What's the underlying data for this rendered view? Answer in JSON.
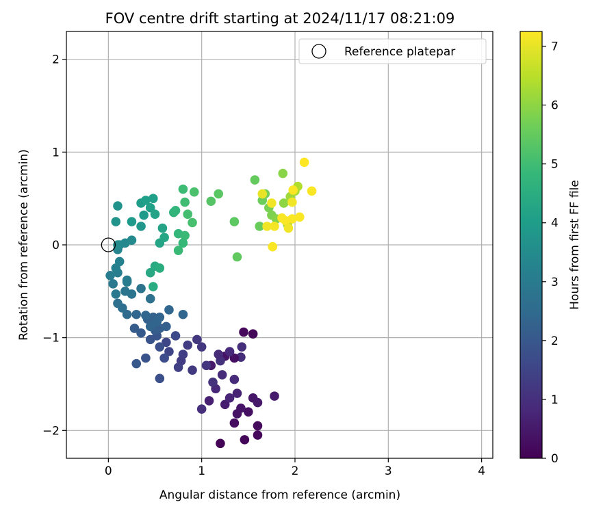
{
  "chart_data": {
    "type": "scatter",
    "title": "FOV centre drift starting at 2024/11/17 08:21:09",
    "xlabel": "Angular distance from reference (arcmin)",
    "ylabel": "Rotation from reference (arcmin)",
    "xlim": [
      -0.45,
      4.12
    ],
    "ylim": [
      -2.3,
      2.3
    ],
    "xticks": [
      0,
      1,
      2,
      3,
      4
    ],
    "yticks": [
      -2,
      -1,
      0,
      1,
      2
    ],
    "grid": true,
    "legend": {
      "placement": "top-right",
      "entries": [
        "Reference platepar"
      ]
    },
    "reference_point": {
      "x": 0,
      "y": 0
    },
    "colorbar": {
      "label": "Hours from first FF file",
      "range": [
        0,
        7.25
      ],
      "ticks": [
        0,
        1,
        2,
        3,
        4,
        5,
        6,
        7
      ],
      "colormap": [
        "#440154",
        "#482878",
        "#3e4989",
        "#31688e",
        "#26828e",
        "#1f9e89",
        "#35b779",
        "#6ece58",
        "#b5de2b",
        "#fde725"
      ]
    },
    "series": [
      {
        "points": [
          [
            1.2,
            -2.14,
            0.05
          ],
          [
            1.46,
            -2.1,
            0.1
          ],
          [
            1.6,
            -2.05,
            0.15
          ],
          [
            1.6,
            -1.95,
            0.2
          ],
          [
            1.35,
            -1.92,
            0.25
          ],
          [
            1.5,
            -1.8,
            0.3
          ],
          [
            1.38,
            -1.82,
            0.35
          ],
          [
            1.42,
            -1.76,
            0.4
          ],
          [
            1.55,
            -1.65,
            0.45
          ],
          [
            1.6,
            -1.7,
            0.5
          ],
          [
            1.78,
            -1.63,
            0.55
          ],
          [
            1.25,
            -1.72,
            0.6
          ],
          [
            1.08,
            -1.68,
            0.65
          ],
          [
            1.38,
            -1.6,
            0.7
          ],
          [
            1.3,
            -1.65,
            0.75
          ],
          [
            1.15,
            -1.55,
            0.8
          ],
          [
            1.35,
            -1.45,
            0.85
          ],
          [
            1.22,
            -1.4,
            0.9
          ],
          [
            1.42,
            -1.21,
            0.95
          ],
          [
            1.43,
            -1.1,
            1.0
          ],
          [
            1.55,
            -0.96,
            0.1
          ],
          [
            1.45,
            -0.94,
            0.15
          ],
          [
            1.35,
            -1.22,
            0.3
          ],
          [
            1.25,
            -1.2,
            0.4
          ],
          [
            1.1,
            -1.3,
            0.5
          ],
          [
            1.0,
            -1.77,
            1.0
          ],
          [
            1.12,
            -1.48,
            1.05
          ],
          [
            1.2,
            -1.25,
            1.05
          ],
          [
            1.3,
            -1.15,
            0.85
          ],
          [
            1.18,
            -1.18,
            0.9
          ],
          [
            0.95,
            -1.02,
            1.2
          ],
          [
            1.0,
            -1.1,
            1.2
          ],
          [
            0.9,
            -1.35,
            1.25
          ],
          [
            1.05,
            -1.3,
            1.15
          ],
          [
            0.85,
            -1.08,
            1.3
          ],
          [
            0.8,
            -1.18,
            1.35
          ],
          [
            0.78,
            -1.25,
            1.3
          ],
          [
            0.75,
            -1.32,
            1.4
          ],
          [
            0.72,
            -0.98,
            1.6
          ],
          [
            0.62,
            -1.05,
            1.55
          ],
          [
            0.65,
            -1.15,
            1.5
          ],
          [
            0.6,
            -1.22,
            1.7
          ],
          [
            0.55,
            -1.1,
            1.8
          ],
          [
            0.55,
            -1.44,
            1.8
          ],
          [
            0.4,
            -1.22,
            1.85
          ],
          [
            0.52,
            -0.98,
            1.9
          ],
          [
            0.45,
            -1.02,
            1.9
          ],
          [
            0.3,
            -1.28,
            2.0
          ],
          [
            0.35,
            -0.95,
            2.05
          ],
          [
            0.28,
            -0.9,
            2.1
          ],
          [
            0.5,
            -0.92,
            2.1
          ],
          [
            0.55,
            -0.9,
            2.15
          ],
          [
            0.62,
            -0.88,
            2.2
          ],
          [
            0.47,
            -0.85,
            2.2
          ],
          [
            0.42,
            -0.8,
            2.2
          ],
          [
            0.48,
            -0.78,
            2.25
          ],
          [
            0.55,
            -0.78,
            2.3
          ],
          [
            0.52,
            -0.83,
            2.35
          ],
          [
            0.45,
            -0.88,
            2.35
          ],
          [
            0.4,
            -0.76,
            2.4
          ],
          [
            0.3,
            -0.75,
            2.4
          ],
          [
            0.2,
            -0.75,
            2.5
          ],
          [
            0.15,
            -0.68,
            2.6
          ],
          [
            0.1,
            -0.63,
            2.65
          ],
          [
            0.65,
            -0.7,
            2.4
          ],
          [
            0.8,
            -0.75,
            2.4
          ],
          [
            0.45,
            -0.58,
            2.7
          ],
          [
            0.35,
            -0.47,
            2.75
          ],
          [
            0.25,
            -0.53,
            2.8
          ],
          [
            0.18,
            -0.5,
            2.85
          ],
          [
            0.08,
            -0.53,
            2.9
          ],
          [
            0.05,
            -0.42,
            2.95
          ],
          [
            0.2,
            -0.4,
            3.0
          ],
          [
            0.2,
            -0.38,
            3.05
          ],
          [
            0.02,
            -0.33,
            3.1
          ],
          [
            0.1,
            -0.3,
            3.1
          ],
          [
            0.08,
            -0.25,
            3.15
          ],
          [
            0.12,
            -0.18,
            3.2
          ],
          [
            0.1,
            -0.05,
            3.3
          ],
          [
            0.12,
            0.0,
            3.3
          ],
          [
            0.18,
            0.02,
            3.4
          ],
          [
            0.25,
            0.05,
            3.45
          ],
          [
            0.1,
            0.0,
            3.5
          ],
          [
            0.08,
            0.25,
            3.7
          ],
          [
            0.1,
            0.42,
            3.7
          ],
          [
            0.35,
            0.2,
            3.8
          ],
          [
            0.25,
            0.25,
            3.9
          ],
          [
            0.38,
            0.32,
            3.95
          ],
          [
            0.35,
            0.45,
            4.0
          ],
          [
            0.4,
            0.48,
            4.05
          ],
          [
            0.48,
            0.5,
            4.05
          ],
          [
            0.45,
            0.4,
            4.1
          ],
          [
            0.5,
            0.33,
            4.2
          ],
          [
            0.58,
            0.18,
            4.2
          ],
          [
            0.55,
            0.02,
            4.25
          ],
          [
            0.6,
            0.08,
            4.3
          ],
          [
            0.45,
            -0.3,
            4.35
          ],
          [
            0.5,
            -0.23,
            4.4
          ],
          [
            0.48,
            -0.45,
            4.45
          ],
          [
            0.55,
            -0.25,
            4.5
          ],
          [
            0.7,
            0.35,
            4.7
          ],
          [
            0.72,
            0.37,
            4.75
          ],
          [
            0.75,
            0.12,
            4.8
          ],
          [
            0.8,
            0.02,
            4.85
          ],
          [
            0.82,
            0.1,
            4.9
          ],
          [
            0.75,
            -0.06,
            4.9
          ],
          [
            0.8,
            0.6,
            4.95
          ],
          [
            0.82,
            0.46,
            5.0
          ],
          [
            0.85,
            0.33,
            5.05
          ],
          [
            0.9,
            0.24,
            5.1
          ],
          [
            0.92,
            0.57,
            5.15
          ],
          [
            1.1,
            0.47,
            5.3
          ],
          [
            1.18,
            0.55,
            5.35
          ],
          [
            1.35,
            0.25,
            5.4
          ],
          [
            1.38,
            -0.13,
            5.45
          ],
          [
            1.57,
            0.7,
            5.5
          ],
          [
            1.62,
            0.2,
            5.55
          ],
          [
            1.65,
            0.48,
            5.6
          ],
          [
            1.68,
            0.55,
            5.7
          ],
          [
            1.72,
            0.4,
            5.75
          ],
          [
            1.75,
            0.32,
            5.8
          ],
          [
            1.8,
            0.28,
            5.9
          ],
          [
            1.87,
            0.77,
            5.95
          ],
          [
            1.88,
            0.45,
            6.0
          ],
          [
            1.92,
            0.22,
            6.1
          ],
          [
            1.95,
            0.52,
            6.2
          ],
          [
            2.0,
            0.58,
            6.3
          ],
          [
            2.03,
            0.63,
            6.4
          ],
          [
            1.65,
            0.55,
            7.0
          ],
          [
            1.7,
            0.2,
            7.1
          ],
          [
            1.75,
            0.45,
            7.1
          ],
          [
            1.78,
            0.2,
            7.15
          ],
          [
            1.76,
            -0.02,
            7.2
          ],
          [
            1.86,
            0.29,
            7.2
          ],
          [
            1.9,
            0.26,
            7.2
          ],
          [
            1.93,
            0.18,
            7.1
          ],
          [
            1.97,
            0.28,
            7.2
          ],
          [
            1.97,
            0.46,
            7.1
          ],
          [
            1.98,
            0.59,
            7.2
          ],
          [
            2.05,
            0.3,
            7.2
          ],
          [
            2.1,
            0.89,
            7.25
          ],
          [
            2.18,
            0.58,
            7.2
          ]
        ]
      }
    ]
  }
}
